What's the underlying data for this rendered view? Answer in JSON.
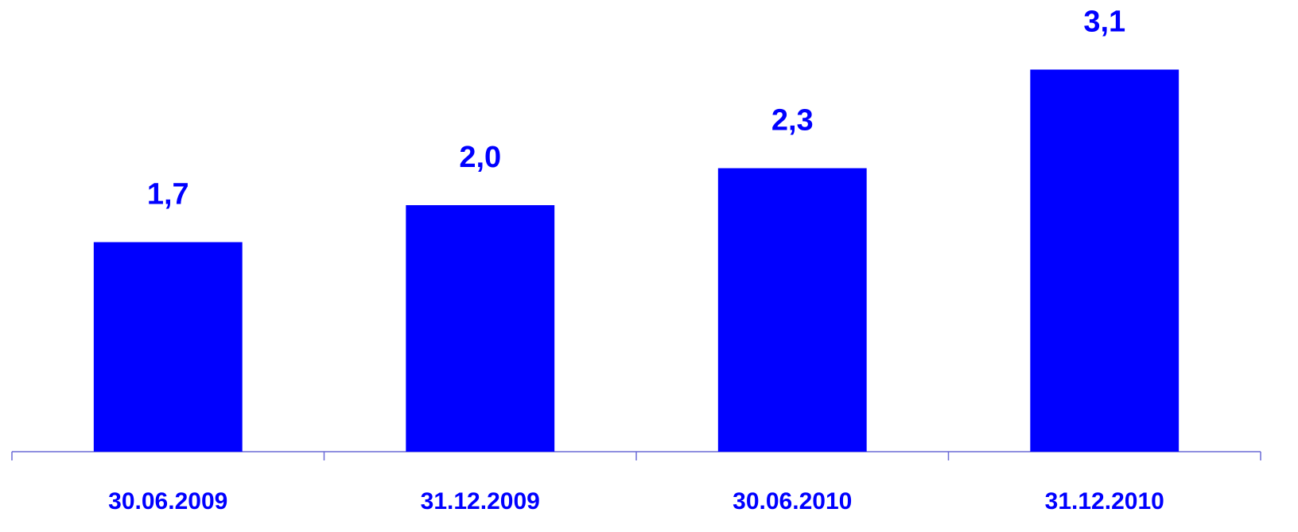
{
  "chart_data": {
    "type": "bar",
    "categories": [
      "30.06.2009",
      "31.12.2009",
      "30.06.2010",
      "31.12.2010"
    ],
    "values": [
      1.7,
      2.0,
      2.3,
      3.1
    ],
    "value_labels": [
      "1,7",
      "2,0",
      "2,3",
      "3,1"
    ],
    "color": "#0000ff",
    "ylim": [
      0,
      3.5
    ]
  }
}
